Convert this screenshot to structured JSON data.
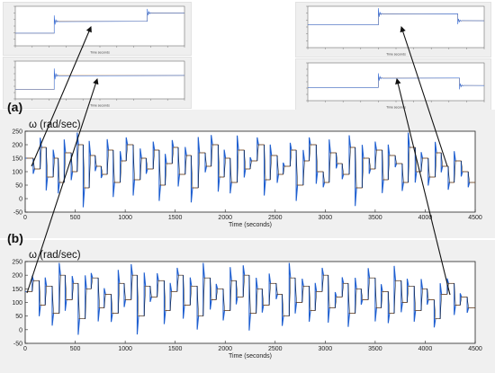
{
  "panels": [
    {
      "letter": "(a)",
      "ylabel": "ω (rad/sec)",
      "xlabel": "Time (seconds)"
    },
    {
      "letter": "(b)",
      "ylabel": "ω (rad/sec)",
      "xlabel": "Time (seconds)"
    }
  ],
  "chart_data": [
    {
      "type": "line",
      "panel": "(a)",
      "ylabel": "ω (rad/sec)",
      "xlabel": "Time (seconds)",
      "xlim": [
        0,
        4500
      ],
      "ylim": [
        -50,
        250
      ],
      "xticks": [
        0,
        500,
        1000,
        1500,
        2000,
        2500,
        3000,
        3500,
        4000,
        4500
      ],
      "yticks": [
        -50,
        0,
        50,
        100,
        150,
        200,
        250
      ],
      "grid": false,
      "series_colors": [
        "#1f5fd0",
        "#e8893a",
        "#101010"
      ],
      "step_x": [
        0,
        80,
        150,
        210,
        280,
        330,
        390,
        460,
        520,
        580,
        640,
        700,
        760,
        820,
        880,
        950,
        1010,
        1080,
        1150,
        1210,
        1280,
        1340,
        1400,
        1470,
        1530,
        1600,
        1660,
        1730,
        1800,
        1860,
        1930,
        1990,
        2050,
        2120,
        2190,
        2250,
        2320,
        2390,
        2450,
        2520,
        2580,
        2650,
        2710,
        2780,
        2840,
        2910,
        2980,
        3040,
        3110,
        3170,
        3240,
        3300,
        3370,
        3440,
        3500,
        3570,
        3630,
        3700,
        3770,
        3830,
        3900,
        3960,
        4030,
        4100,
        4160,
        4230,
        4290,
        4360,
        4430,
        4500
      ],
      "step_y": [
        150,
        110,
        190,
        80,
        150,
        60,
        170,
        100,
        200,
        40,
        160,
        120,
        90,
        180,
        60,
        140,
        200,
        70,
        150,
        110,
        180,
        50,
        130,
        190,
        90,
        160,
        40,
        170,
        120,
        200,
        80,
        150,
        60,
        180,
        110,
        140,
        200,
        70,
        160,
        90,
        120,
        180,
        50,
        140,
        200,
        100,
        60,
        170,
        130,
        90,
        190,
        40,
        150,
        110,
        180,
        70,
        160,
        130,
        60,
        190,
        100,
        150,
        80,
        170,
        120,
        60,
        140,
        100,
        60
      ]
    },
    {
      "type": "line",
      "panel": "(b)",
      "ylabel": "ω (rad/sec)",
      "xlabel": "Time (seconds)",
      "xlim": [
        0,
        4500
      ],
      "ylim": [
        -50,
        250
      ],
      "xticks": [
        0,
        500,
        1000,
        1500,
        2000,
        2500,
        3000,
        3500,
        4000,
        4500
      ],
      "yticks": [
        -50,
        0,
        50,
        100,
        150,
        200,
        250
      ],
      "grid": false,
      "series_colors": [
        "#1f5fd0",
        "#e8893a",
        "#101010"
      ],
      "step_x": [
        0,
        70,
        140,
        200,
        270,
        340,
        400,
        470,
        530,
        600,
        660,
        730,
        790,
        860,
        930,
        990,
        1060,
        1120,
        1190,
        1250,
        1320,
        1390,
        1450,
        1520,
        1580,
        1650,
        1720,
        1780,
        1850,
        1910,
        1980,
        2050,
        2110,
        2180,
        2240,
        2310,
        2370,
        2440,
        2510,
        2570,
        2640,
        2700,
        2770,
        2840,
        2900,
        2970,
        3030,
        3100,
        3170,
        3230,
        3300,
        3360,
        3430,
        3500,
        3560,
        3630,
        3690,
        3760,
        3820,
        3890,
        3960,
        4020,
        4090,
        4150,
        4220,
        4290,
        4350,
        4420,
        4500
      ],
      "step_y": [
        140,
        180,
        90,
        160,
        60,
        200,
        110,
        170,
        40,
        150,
        190,
        80,
        130,
        60,
        170,
        110,
        200,
        50,
        160,
        120,
        180,
        70,
        140,
        200,
        90,
        160,
        50,
        190,
        110,
        150,
        70,
        180,
        120,
        200,
        60,
        150,
        90,
        170,
        130,
        50,
        190,
        100,
        160,
        70,
        140,
        200,
        80,
        120,
        170,
        60,
        150,
        110,
        190,
        80,
        140,
        60,
        180,
        100,
        160,
        70,
        150,
        110,
        40,
        130,
        170,
        90,
        120,
        80
      ]
    }
  ],
  "insets": {
    "x_caption": "Time seconds"
  }
}
